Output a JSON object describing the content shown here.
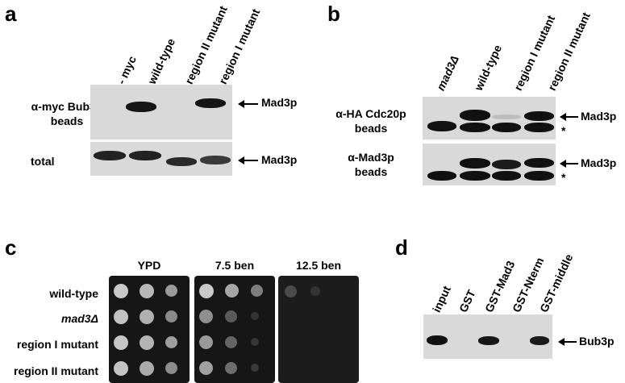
{
  "panel_a": {
    "letter": "a",
    "lanes": [
      "- myc",
      "wild-type",
      "region II mutant",
      "region I mutant"
    ],
    "row1_label_line1": "α-myc Bub3p",
    "row1_label_line2": "beads",
    "row2_label": "total",
    "marker1": "Mad3p",
    "marker2": "Mad3p"
  },
  "panel_b": {
    "letter": "b",
    "lanes": [
      "mad3Δ",
      "wild-type",
      "region I mutant",
      "region II mutant"
    ],
    "row1_label_line1": "α-HA Cdc20p",
    "row1_label_line2": "beads",
    "row2_label_line1": "α-Mad3p",
    "row2_label_line2": "beads",
    "marker1": "Mad3p",
    "marker2": "Mad3p",
    "star1": "*",
    "star2": "*"
  },
  "panel_c": {
    "letter": "c",
    "conditions": [
      "YPD",
      "7.5 ben",
      "12.5 ben"
    ],
    "strains": [
      "wild-type",
      "mad3Δ",
      "region I mutant",
      "region II mutant"
    ]
  },
  "panel_d": {
    "letter": "d",
    "lanes": [
      "input",
      "GST",
      "GST-Mad3",
      "GST-Nterm",
      "GST-middle"
    ],
    "marker": "Bub3p"
  }
}
